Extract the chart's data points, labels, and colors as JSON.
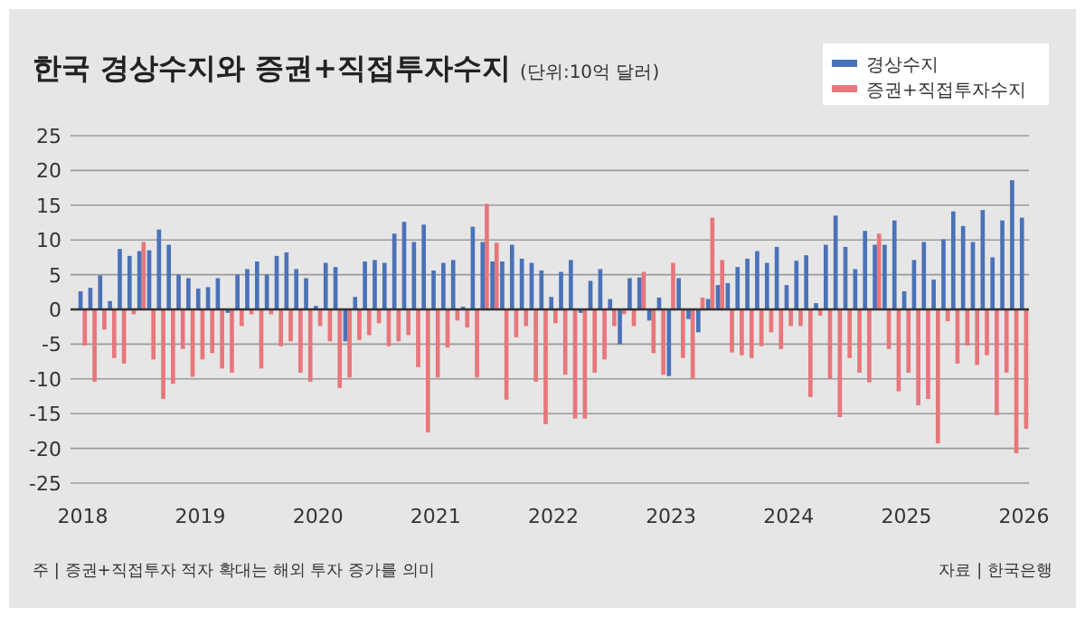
{
  "chart_data": {
    "type": "bar",
    "title": "한국 경상수지와 증권+직접투자수지",
    "subtitle": "(단위:10억 달러)",
    "categories": [
      "2018",
      null,
      null,
      null,
      null,
      null,
      null,
      null,
      null,
      null,
      null,
      null,
      "2019",
      null,
      null,
      null,
      null,
      null,
      null,
      null,
      null,
      null,
      null,
      null,
      "2020",
      null,
      null,
      null,
      null,
      null,
      null,
      null,
      null,
      null,
      null,
      null,
      "2021",
      null,
      null,
      null,
      null,
      null,
      null,
      null,
      null,
      null,
      null,
      null,
      "2022",
      null,
      null,
      null,
      null,
      null,
      null,
      null,
      null,
      null,
      null,
      null,
      "2023",
      null,
      null,
      null,
      null,
      null,
      null,
      null,
      null,
      null,
      null,
      null,
      "2024",
      null,
      null,
      null,
      null,
      null,
      null,
      null,
      null,
      null,
      null,
      null,
      "2025",
      null,
      null,
      null,
      null,
      null,
      null,
      null,
      null,
      null,
      null,
      null,
      "2026"
    ],
    "series": [
      {
        "name": "경상수지",
        "color": "#4a72b8",
        "values": [
          2.6,
          3.1,
          4.9,
          1.2,
          8.7,
          7.7,
          8.4,
          8.5,
          11.5,
          9.3,
          5.0,
          4.5,
          3.0,
          3.2,
          4.5,
          -0.5,
          5.0,
          5.8,
          6.9,
          5.0,
          7.7,
          8.2,
          5.8,
          4.5,
          0.5,
          6.7,
          6.1,
          -4.6,
          1.8,
          6.9,
          7.1,
          6.7,
          10.9,
          12.6,
          9.7,
          12.2,
          5.6,
          6.7,
          7.1,
          0.4,
          11.9,
          9.7,
          6.9,
          6.9,
          9.3,
          7.3,
          6.7,
          5.6,
          1.8,
          5.4,
          7.1,
          -0.5,
          4.1,
          5.8,
          1.5,
          -5.0,
          4.5,
          4.6,
          -1.6,
          1.7,
          -9.6,
          4.5,
          -1.4,
          -3.3,
          1.5,
          3.5,
          3.8,
          6.1,
          7.3,
          8.4,
          6.7,
          9.0,
          3.5,
          7.0,
          7.8,
          0.9,
          9.3,
          13.5,
          9.0,
          5.8,
          11.3,
          9.3,
          9.3,
          12.8,
          2.6,
          7.1,
          9.7,
          4.3,
          10.1,
          14.1,
          12.0,
          9.7,
          14.3,
          7.5,
          12.8,
          18.6,
          13.2
        ]
      },
      {
        "name": "증권+직접투자수지",
        "color": "#e8767a",
        "values": [
          -5.2,
          -10.4,
          -2.9,
          -7.0,
          -7.8,
          -0.7,
          9.7,
          -7.2,
          -12.9,
          -10.7,
          -5.7,
          -9.7,
          -7.2,
          -6.3,
          -8.5,
          -9.1,
          -2.4,
          -0.7,
          -8.5,
          -0.7,
          -5.3,
          -4.6,
          -9.1,
          -10.4,
          -2.4,
          -4.6,
          -11.3,
          -9.8,
          -4.4,
          -3.7,
          -2.0,
          -5.3,
          -4.6,
          -3.7,
          -8.3,
          -17.7,
          -9.8,
          -5.5,
          -1.6,
          -2.6,
          -9.8,
          15.2,
          9.6,
          -13.0,
          -4.0,
          -2.4,
          -10.4,
          -16.5,
          -2.0,
          -9.4,
          -15.7,
          -15.7,
          -9.1,
          -7.2,
          -2.4,
          -0.7,
          -2.4,
          5.4,
          -6.3,
          -9.4,
          6.7,
          -7.0,
          -10.0,
          1.7,
          13.2,
          7.1,
          -6.2,
          -6.6,
          -7.0,
          -5.3,
          -3.3,
          -5.7,
          -2.4,
          -2.4,
          -12.6,
          -0.9,
          -10.0,
          -15.5,
          -7.0,
          -9.1,
          -10.5,
          10.9,
          -5.7,
          -11.8,
          -9.1,
          -13.8,
          -12.9,
          -19.3,
          -1.7,
          -7.8,
          -5.2,
          -8.0,
          -6.6,
          -15.2,
          -9.1,
          -20.7,
          -17.2
        ]
      }
    ],
    "ylim": [
      -25,
      25
    ],
    "yticks": [
      -25,
      -20,
      -15,
      -10,
      -5,
      0,
      5,
      10,
      15,
      20,
      25
    ],
    "grid": "y",
    "legend": "top right",
    "annotations": [
      "주 | 증권+직접투자 적자 확대는 해외 투자 증가를 의미",
      "자료 | 한국은행"
    ]
  }
}
